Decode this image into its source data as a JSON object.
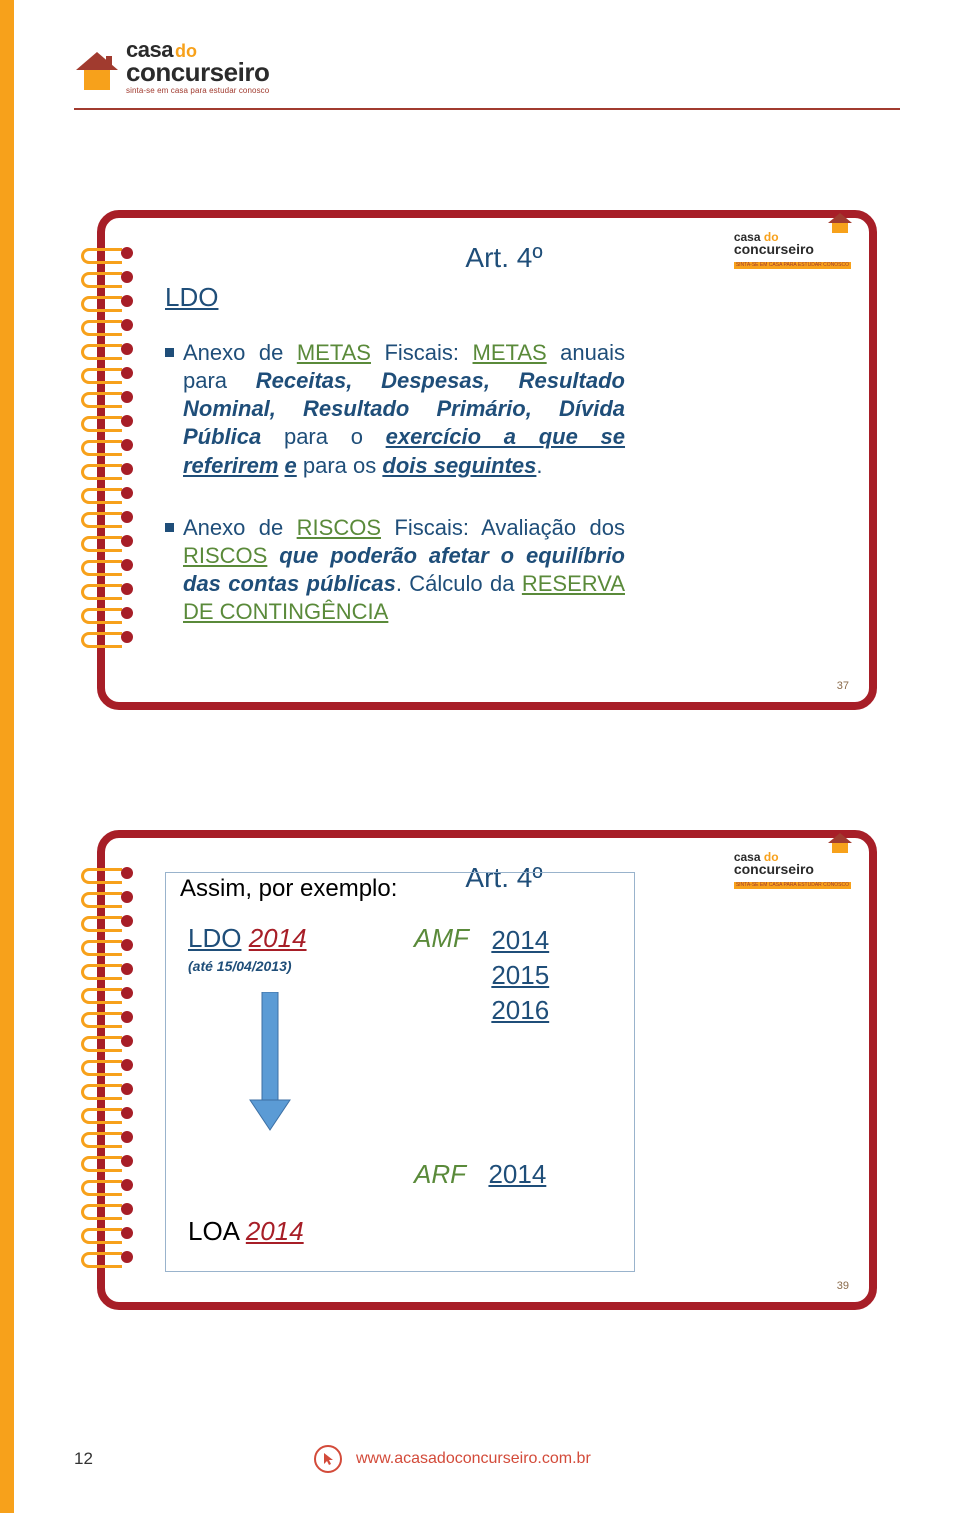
{
  "brand": {
    "line1_a": "casa",
    "line1_b": "do",
    "line2": "concurseiro",
    "tagline": "sinta-se em casa para estudar conosco",
    "mini_tag": "SINTA-SE EM CASA PARA ESTUDAR CONOSCO",
    "house_colors": {
      "roof": "#a13b2f",
      "wall": "#f7a11b"
    }
  },
  "slide1": {
    "title": "Art. 4º",
    "ldo": "LDO",
    "bullet1_html": "Anexo de <span class='u g'>METAS</span> Fiscais: <span class='u g'>METAS</span> anuais para <span class='bi'>Receitas, Despesas, Resultado Nominal, Resultado Primário, Dívida Pública</span> para o <span class='bi u'>exercício a que se referirem</span> <span class='bi u'>e</span> para os <span class='bi u'>dois seguintes</span>.",
    "bullet2_html": "Anexo de <span class='u g'>RISCOS</span> Fiscais: Avaliação dos <span class='u g'>RISCOS</span> <span class='bi'>que poderão afetar o equilíbrio das contas públicas</span>. Cálculo da <span class='u g'>RESERVA DE CONTINGÊNCIA</span>",
    "page_number": "37"
  },
  "slide2": {
    "title": "Art. 4º",
    "example_label": "Assim, por exemplo:",
    "ldo_label": "LDO",
    "ldo_year": "2014",
    "ldo_sub": "(até 15/04/2013)",
    "amf_label": "AMF",
    "amf_years": [
      "2014",
      "2015",
      "2016"
    ],
    "arf_label": "ARF",
    "arf_year": "2014",
    "loa_label": "LOA",
    "loa_year": "2014",
    "arrow_color": "#5b9bd5",
    "page_number": "39"
  },
  "footer": {
    "page": "12",
    "url": "www.acasadoconcurseiro.com.br",
    "cursor_color": "#d34b3a"
  },
  "colors": {
    "slide_border": "#a71e27",
    "ring": "#f7a11b",
    "text_blue": "#1f4e79",
    "text_green": "#5a8a3a",
    "text_red": "#a71e27",
    "side_stripe": "#f7a11b"
  }
}
